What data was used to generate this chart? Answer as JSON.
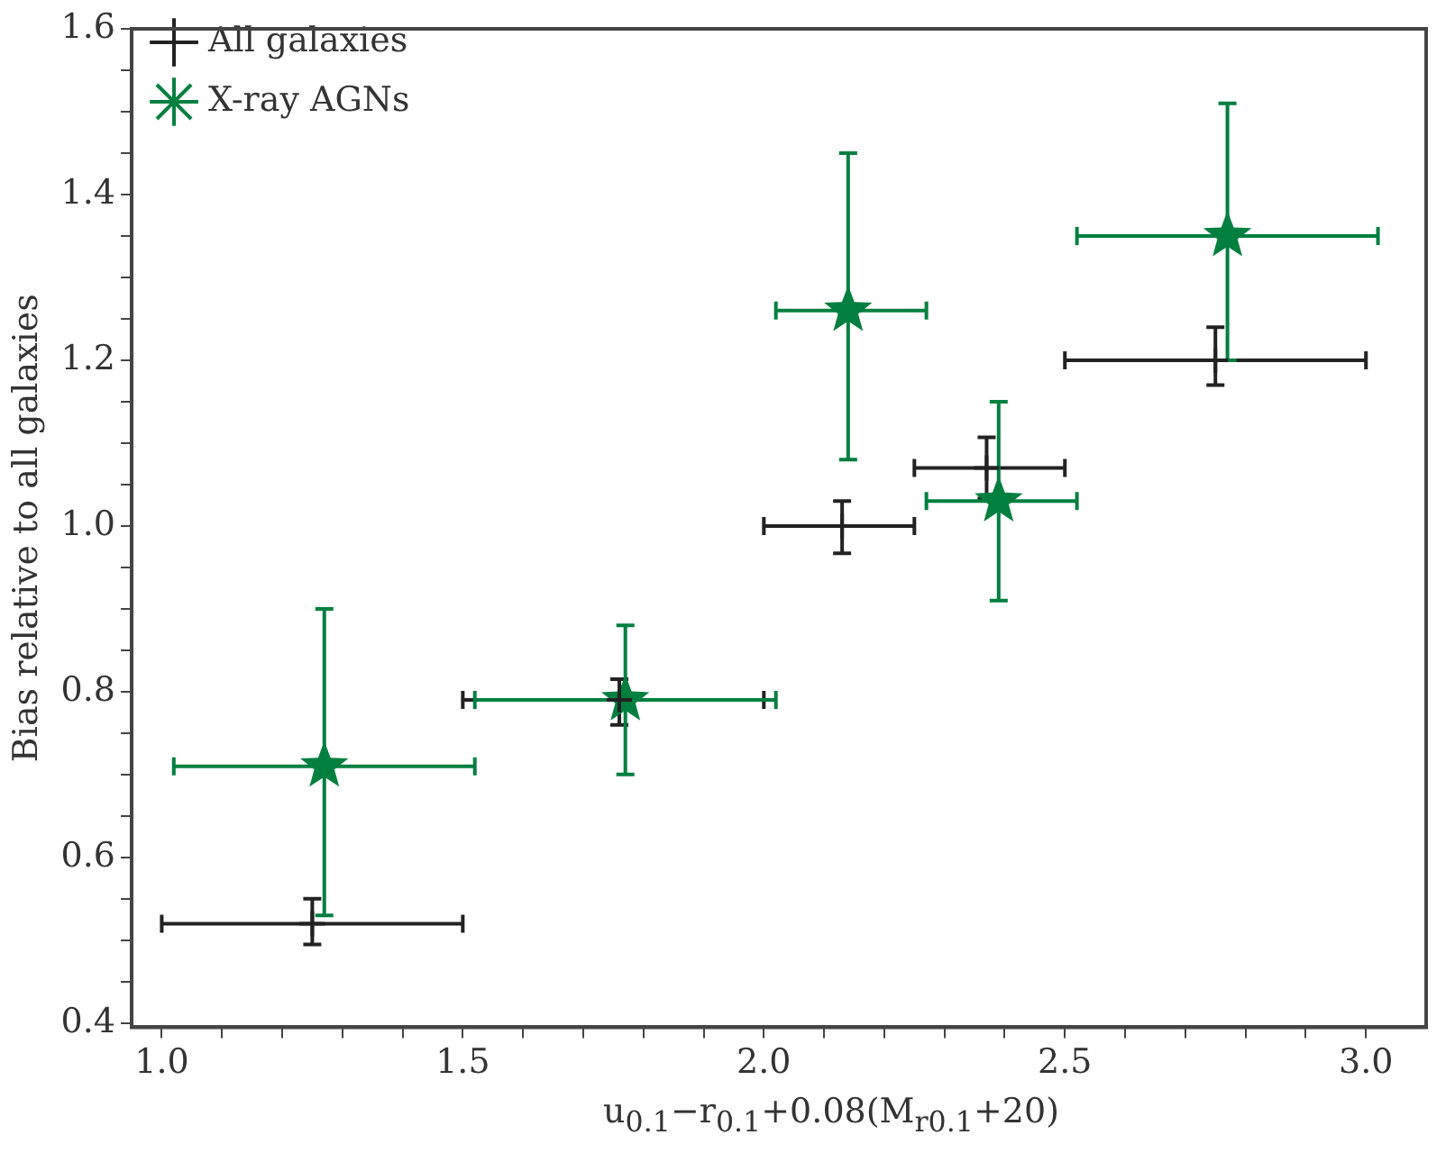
{
  "chart_data": {
    "type": "scatter",
    "xlabel": "u$_{0.1}$−r$_{0.1}$+0.08(M$_{r0.1}$+20)",
    "ylabel": "Bias relative to all galaxies",
    "xlim": [
      0.95,
      3.1
    ],
    "ylim": [
      0.395,
      1.6
    ],
    "xticks": [
      {
        "value": 1.0,
        "label": "1.0"
      },
      {
        "value": 1.1,
        "label": null
      },
      {
        "value": 1.2,
        "label": null
      },
      {
        "value": 1.3,
        "label": null
      },
      {
        "value": 1.4,
        "label": null
      },
      {
        "value": 1.5,
        "label": "1.5"
      },
      {
        "value": 1.6,
        "label": null
      },
      {
        "value": 1.7,
        "label": null
      },
      {
        "value": 1.8,
        "label": null
      },
      {
        "value": 1.9,
        "label": null
      },
      {
        "value": 2.0,
        "label": "2.0"
      },
      {
        "value": 2.1,
        "label": null
      },
      {
        "value": 2.2,
        "label": null
      },
      {
        "value": 2.3,
        "label": null
      },
      {
        "value": 2.4,
        "label": null
      },
      {
        "value": 2.5,
        "label": "2.5"
      },
      {
        "value": 2.6,
        "label": null
      },
      {
        "value": 2.7,
        "label": null
      },
      {
        "value": 2.8,
        "label": null
      },
      {
        "value": 2.9,
        "label": null
      },
      {
        "value": 3.0,
        "label": "3.0"
      }
    ],
    "yticks": [
      {
        "value": 0.4,
        "label": "0.4"
      },
      {
        "value": 0.45,
        "label": null
      },
      {
        "value": 0.5,
        "label": null
      },
      {
        "value": 0.55,
        "label": null
      },
      {
        "value": 0.6,
        "label": "0.6"
      },
      {
        "value": 0.65,
        "label": null
      },
      {
        "value": 0.7,
        "label": null
      },
      {
        "value": 0.75,
        "label": null
      },
      {
        "value": 0.8,
        "label": "0.8"
      },
      {
        "value": 0.85,
        "label": null
      },
      {
        "value": 0.9,
        "label": null
      },
      {
        "value": 0.95,
        "label": null
      },
      {
        "value": 1.0,
        "label": "1.0"
      },
      {
        "value": 1.05,
        "label": null
      },
      {
        "value": 1.1,
        "label": null
      },
      {
        "value": 1.15,
        "label": null
      },
      {
        "value": 1.2,
        "label": "1.2"
      },
      {
        "value": 1.25,
        "label": null
      },
      {
        "value": 1.3,
        "label": null
      },
      {
        "value": 1.35,
        "label": null
      },
      {
        "value": 1.4,
        "label": "1.4"
      },
      {
        "value": 1.45,
        "label": null
      },
      {
        "value": 1.5,
        "label": null
      },
      {
        "value": 1.55,
        "label": null
      },
      {
        "value": 1.6,
        "label": "1.6"
      }
    ],
    "grid": false,
    "legend": "top left",
    "series": [
      {
        "name": "All galaxies",
        "color": "#222222",
        "marker": "cross",
        "x": [
          1.25,
          1.76,
          2.13,
          2.37,
          2.75
        ],
        "values": [
          0.52,
          0.79,
          1.0,
          1.07,
          1.2
        ],
        "errors": [
          [
            0.495,
            0.55
          ],
          [
            0.76,
            0.815
          ],
          [
            0.967,
            1.03
          ],
          [
            1.033,
            1.107
          ],
          [
            1.17,
            1.24
          ]
        ],
        "xerrors": [
          [
            1.0,
            1.5
          ],
          [
            1.5,
            2.0
          ],
          [
            2.0,
            2.25
          ],
          [
            2.25,
            2.5
          ],
          [
            2.5,
            3.0
          ]
        ]
      },
      {
        "name": "X-ray AGNs",
        "color": "#007f3f",
        "marker": "star",
        "x": [
          1.27,
          1.77,
          2.14,
          2.39,
          2.77
        ],
        "values": [
          0.71,
          0.79,
          1.26,
          1.03,
          1.35
        ],
        "errors": [
          [
            0.53,
            0.9
          ],
          [
            0.7,
            0.88
          ],
          [
            1.08,
            1.45
          ],
          [
            0.91,
            1.15
          ],
          [
            1.2,
            1.51
          ]
        ],
        "xerrors": [
          [
            1.02,
            1.52
          ],
          [
            1.52,
            2.02
          ],
          [
            2.02,
            2.27
          ],
          [
            2.27,
            2.52
          ],
          [
            2.52,
            3.02
          ]
        ]
      }
    ]
  }
}
